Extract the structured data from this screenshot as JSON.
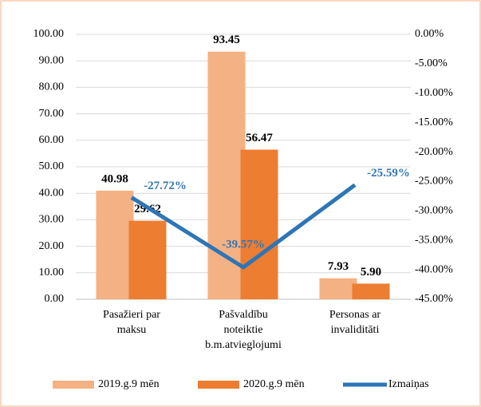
{
  "chart_data": {
    "type": "bar",
    "categories": [
      [
        "Pasažieri par",
        "maksu"
      ],
      [
        "Pašvaldību",
        "noteiktie",
        "b.m.atvieglojumi"
      ],
      [
        "Personas ar",
        "invaliditāti"
      ]
    ],
    "series": [
      {
        "name": "2019.g.9 mēn",
        "color": "#f4b183",
        "values": [
          40.98,
          93.45,
          7.93
        ],
        "value_labels": [
          "40.98",
          "93.45",
          "7.93"
        ]
      },
      {
        "name": "2020.g.9 mēn",
        "color": "#ed7d31",
        "values": [
          29.62,
          56.47,
          5.9
        ],
        "value_labels": [
          "29.62",
          "56.47",
          "5.90"
        ]
      },
      {
        "name": "Izmaiņas",
        "type": "line",
        "axis": "y2",
        "color": "#2e75b6",
        "values": [
          -27.72,
          -39.57,
          -25.59
        ],
        "value_labels": [
          "-27.72%",
          "-39.57%",
          "-25.59%"
        ]
      }
    ],
    "ylim": [
      0,
      100
    ],
    "yticks": [
      {
        "value": 0,
        "label": "0.00"
      },
      {
        "value": 10,
        "label": "10.00"
      },
      {
        "value": 20,
        "label": "20.00"
      },
      {
        "value": 30,
        "label": "30.00"
      },
      {
        "value": 40,
        "label": "40.00"
      },
      {
        "value": 50,
        "label": "50.00"
      },
      {
        "value": 60,
        "label": "60.00"
      },
      {
        "value": 70,
        "label": "70.00"
      },
      {
        "value": 80,
        "label": "80.00"
      },
      {
        "value": 90,
        "label": "90.00"
      },
      {
        "value": 100,
        "label": "100.00"
      }
    ],
    "y2lim": [
      -45,
      0
    ],
    "y2ticks": [
      {
        "value": -45,
        "label": "-45.00%"
      },
      {
        "value": -40,
        "label": "-40.00%"
      },
      {
        "value": -35,
        "label": "-35.00%"
      },
      {
        "value": -30,
        "label": "-30.00%"
      },
      {
        "value": -25,
        "label": "-25.00%"
      },
      {
        "value": -20,
        "label": "-20.00%"
      },
      {
        "value": -15,
        "label": "-15.00%"
      },
      {
        "value": -10,
        "label": "-10.00%"
      },
      {
        "value": -5,
        "label": "-5.00%"
      },
      {
        "value": 0,
        "label": "0.00%"
      }
    ],
    "grid": true,
    "legend": "bottom"
  }
}
